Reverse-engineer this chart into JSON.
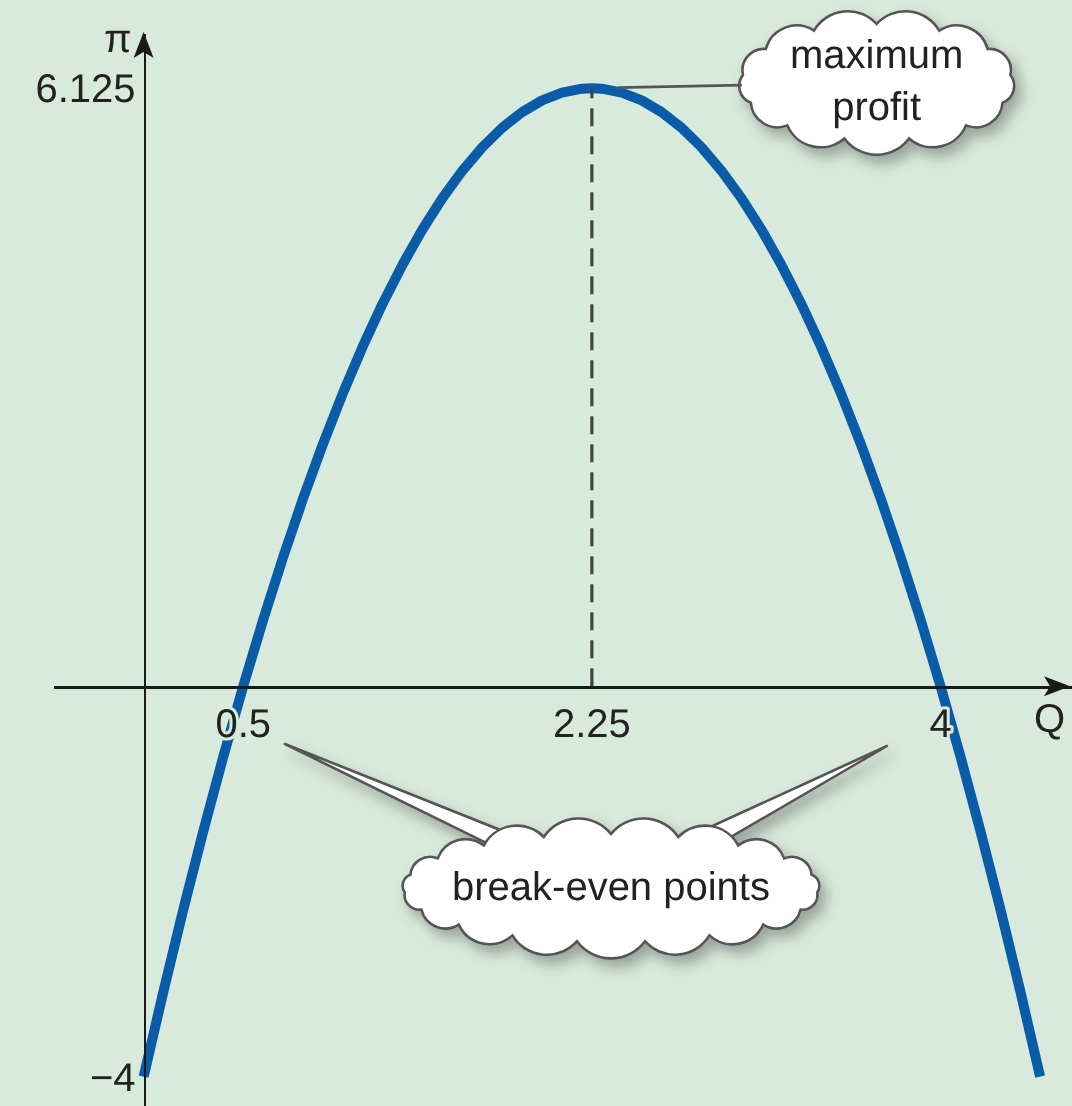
{
  "chart_data": {
    "type": "line",
    "xlabel": "Q",
    "ylabel": "π",
    "x": [
      0,
      0.1,
      0.2,
      0.3,
      0.4,
      0.5,
      0.6,
      0.7,
      0.8,
      0.9,
      1,
      1.1,
      1.2,
      1.3,
      1.4,
      1.5,
      1.6,
      1.7,
      1.8,
      1.9,
      2,
      2.1,
      2.2,
      2.25,
      2.3,
      2.4,
      2.5,
      2.6,
      2.7,
      2.8,
      2.9,
      3,
      3.1,
      3.2,
      3.3,
      3.4,
      3.5,
      3.6,
      3.7,
      3.8,
      3.9,
      4,
      4.1,
      4.2,
      4.3,
      4.4,
      4.5
    ],
    "series": [
      {
        "color": "#0b5ca8",
        "values": [
          -4,
          -3.12,
          -2.28,
          -1.48,
          -0.72,
          0,
          0.68,
          1.32,
          1.92,
          2.48,
          3,
          3.48,
          3.92,
          4.32,
          4.68,
          5,
          5.28,
          5.52,
          5.72,
          5.88,
          6,
          6.08,
          6.12,
          6.125,
          6.12,
          6.08,
          6,
          5.88,
          5.72,
          5.52,
          5.28,
          5,
          4.68,
          4.32,
          3.92,
          3.48,
          3,
          2.48,
          1.92,
          1.32,
          0.68,
          0,
          -0.72,
          -1.48,
          -2.28,
          -3.12,
          -4
        ]
      },
      {
        "type": "line",
        "x": [
          2.25,
          2.25
        ],
        "values": [
          0,
          6.125
        ],
        "color": "#444444",
        "line_style": "dashed"
      }
    ],
    "xlim": [
      -0.45,
      4.66
    ],
    "ylim": [
      -4.3,
      6.68
    ],
    "xticks": [
      0.5,
      2.25,
      4
    ],
    "yticks": [
      {
        "value": -4,
        "label": "−4"
      },
      6.125
    ],
    "annotations": [
      {
        "text": "maximum\nprofit",
        "x": 2.25,
        "y": 6.125
      },
      "break-even points"
    ],
    "grid": false,
    "marker": "none",
    "line_style": "solid"
  }
}
